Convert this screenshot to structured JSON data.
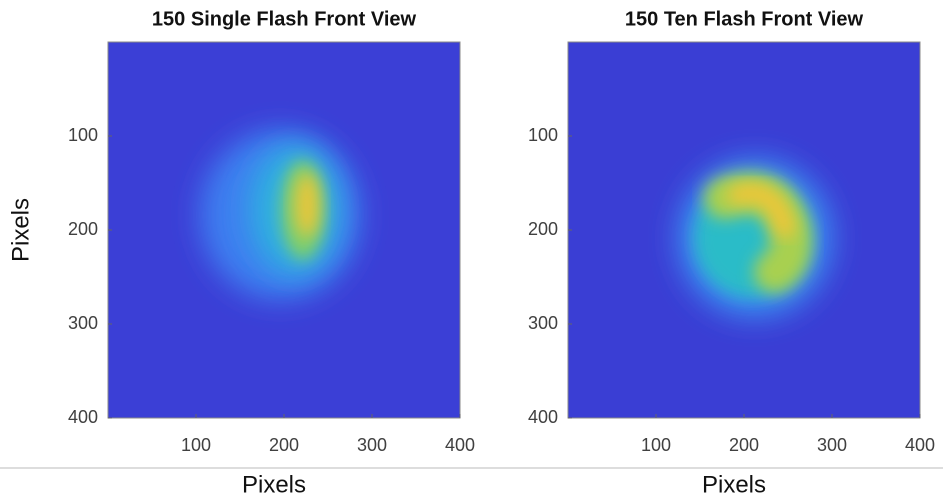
{
  "chart_data": [
    {
      "type": "heatmap",
      "title": "150 Single Flash Front View",
      "xlabel": "Pixels",
      "ylabel": "Pixels",
      "xlim": [
        0,
        400
      ],
      "ylim": [
        0,
        400
      ],
      "y_reversed": true,
      "xticks": [
        100,
        200,
        300,
        400
      ],
      "yticks": [
        100,
        200,
        300,
        400
      ]
    },
    {
      "type": "heatmap",
      "title": "150 Ten Flash Front View",
      "xlabel": "Pixels",
      "xlim": [
        0,
        400
      ],
      "ylim": [
        0,
        400
      ],
      "y_reversed": true,
      "xticks": [
        100,
        200,
        300,
        400
      ],
      "yticks": [
        100,
        200,
        300,
        400
      ]
    }
  ]
}
